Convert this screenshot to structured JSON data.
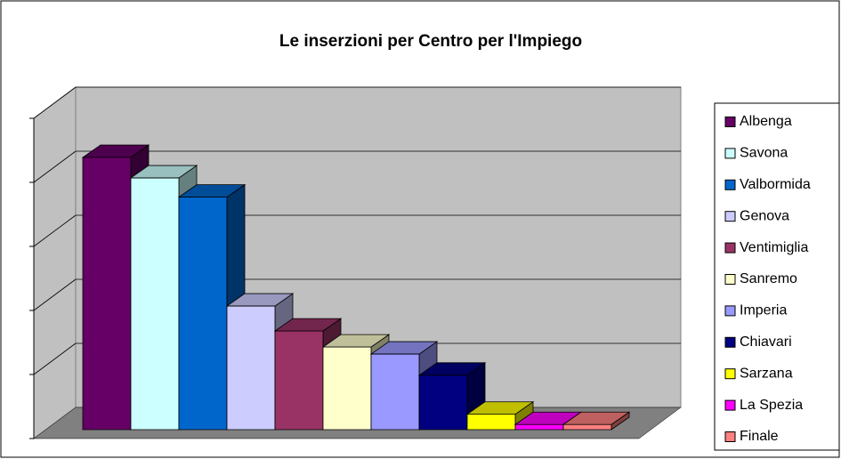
{
  "chart_data": {
    "type": "bar",
    "title": "Le inserzioni per Centro per l'Impiego",
    "categories": [
      "Albenga",
      "Savona",
      "Valbormida",
      "Genova",
      "Ventimiglia",
      "Sanremo",
      "Imperia",
      "Chiavari",
      "Sarzana",
      "La Spezia",
      "Finale"
    ],
    "values": [
      4.25,
      3.93,
      3.63,
      1.93,
      1.54,
      1.29,
      1.18,
      0.85,
      0.24,
      0.08,
      0.08
    ],
    "colors": [
      "#660066",
      "#ccffff",
      "#0066cc",
      "#ccccff",
      "#993366",
      "#ffffcc",
      "#9999ff",
      "#000080",
      "#ffff00",
      "#ff00ff",
      "#ff8080"
    ],
    "ylim": [
      0,
      5
    ],
    "yticks": [
      0,
      1,
      2,
      3,
      4,
      5
    ],
    "grid": true,
    "legend": "right"
  }
}
